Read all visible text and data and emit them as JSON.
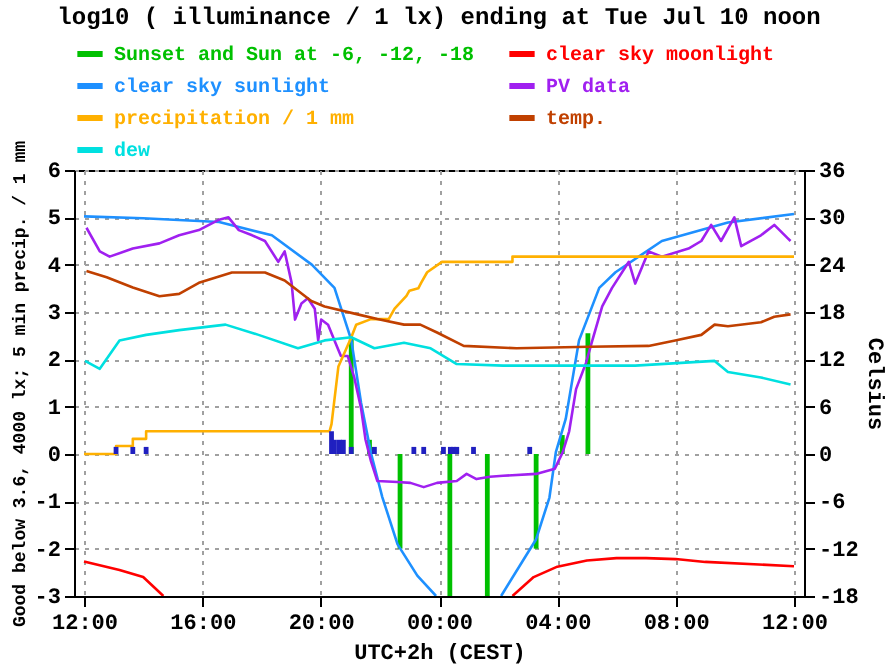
{
  "chart_data": {
    "type": "line",
    "title": "log10 ( illuminance / 1 lx) ending at Tue Jul 10 noon",
    "xlabel": "UTC+2h (CEST)",
    "ylabel": "Good below 3.6, 4000 lx; 5 min precip. / 1 mm",
    "y2label": "Celsius",
    "xlim": [
      "--07-09T12:00",
      "--07-10T12:00"
    ],
    "xticks": [
      {
        "value": "--07-09T12:00",
        "label": "12:00"
      },
      {
        "value": "--07-09T16:00",
        "label": "16:00"
      },
      {
        "value": "--07-09T20:00",
        "label": "20:00"
      },
      {
        "value": "--07-10T00:00",
        "label": "00:00"
      },
      {
        "value": "--07-10T04:00",
        "label": "04:00"
      },
      {
        "value": "--07-10T08:00",
        "label": "08:00"
      },
      {
        "value": "--07-10T12:00",
        "label": "12:00"
      }
    ],
    "ylim": [
      -3,
      6
    ],
    "yticks": [
      -3,
      -2,
      -1,
      0,
      1,
      2,
      3,
      4,
      5,
      6
    ],
    "y2lim": [
      -18,
      36
    ],
    "y2ticks": [
      -18,
      -12,
      -6,
      0,
      6,
      12,
      18,
      24,
      30,
      36
    ],
    "grid": true,
    "legend": "top",
    "series": [
      {
        "name": "Sunset and Sun at -6, -12, -18",
        "type": "bar",
        "color": "#00c000",
        "x": [
          "--07-09T21:02",
          "--07-09T21:39",
          "--07-09T22:41",
          "--07-10T00:22",
          "--07-10T01:38",
          "--07-10T03:17",
          "--07-10T04:10",
          "--07-10T05:02"
        ],
        "values": [
          2.45,
          0.3,
          -2,
          -3,
          -3,
          -2,
          0.4,
          2.55
        ]
      },
      {
        "name": "clear sky moonlight",
        "color": "#ff0000",
        "x": [
          "--07-09T12:00",
          "--07-09T13:12",
          "--07-09T14:00",
          "--07-09T14:41",
          "--07-09T20:00",
          "--07-10T02:29",
          "--07-10T03:12",
          "--07-10T04:00",
          "--07-10T05:00",
          "--07-10T06:00",
          "--07-10T07:00",
          "--07-10T08:00",
          "--07-10T09:00",
          "--07-10T12:00"
        ],
        "values": [
          -2.27,
          -2.45,
          -2.6,
          -3,
          null,
          -3,
          -2.6,
          -2.38,
          -2.25,
          -2.2,
          -2.2,
          -2.22,
          -2.28,
          -2.37
        ]
      },
      {
        "name": "clear sky sunlight",
        "color": "#1e90ff",
        "x": [
          "--07-09T12:00",
          "--07-09T14:00",
          "--07-09T16:34",
          "--07-09T18:21",
          "--07-09T19:42",
          "--07-09T20:28",
          "--07-09T21:02",
          "--07-09T21:22",
          "--07-09T21:42",
          "--07-09T22:05",
          "--07-09T22:36",
          "--07-09T23:16",
          "--07-09T23:54",
          "--07-10T01:00",
          "--07-10T02:06",
          "--07-10T03:17",
          "--07-10T03:44",
          "--07-10T03:57",
          "--07-10T04:17",
          "--07-10T04:44",
          "--07-10T05:25",
          "--07-10T05:58",
          "--07-10T07:32",
          "--07-10T09:46",
          "--07-10T12:00"
        ],
        "values": [
          5.02,
          4.98,
          4.9,
          4.62,
          4.0,
          3.51,
          2.41,
          1.08,
          0.02,
          -0.91,
          -1.91,
          -2.57,
          -3,
          null,
          -3,
          -1.8,
          -0.92,
          0.04,
          0.74,
          2.4,
          3.51,
          3.84,
          4.5,
          4.89,
          5.07
        ]
      },
      {
        "name": "PV data",
        "color": "#a020f0",
        "x": [
          "--07-09T12:05",
          "--07-09T12:32",
          "--07-09T12:52",
          "--07-09T13:39",
          "--07-09T14:33",
          "--07-09T15:13",
          "--07-09T15:53",
          "--07-09T16:34",
          "--07-09T16:53",
          "--07-09T17:14",
          "--07-09T17:41",
          "--07-09T18:07",
          "--07-09T18:34",
          "--07-09T18:47",
          "--07-09T19:01",
          "--07-09T19:08",
          "--07-09T19:21",
          "--07-09T19:34",
          "--07-09T19:48",
          "--07-09T19:55",
          "--07-09T20:01",
          "--07-09T20:15",
          "--07-09T20:28",
          "--07-09T20:41",
          "--07-09T20:55",
          "--07-09T21:08",
          "--07-09T21:22",
          "--07-09T21:31",
          "--07-09T21:42",
          "--07-09T21:55",
          "--07-09T22:36",
          "--07-09T23:02",
          "--07-09T23:29",
          "--07-09T23:56",
          "--07-10T00:36",
          "--07-10T00:56",
          "--07-10T01:16",
          "--07-10T01:43",
          "--07-10T02:10",
          "--07-10T03:17",
          "--07-10T03:55",
          "--07-10T04:11",
          "--07-10T04:24",
          "--07-10T04:38",
          "--07-10T04:58",
          "--07-10T05:11",
          "--07-10T05:31",
          "--07-10T05:51",
          "--07-10T06:25",
          "--07-10T06:38",
          "--07-10T07:05",
          "--07-10T07:32",
          "--07-10T08:26",
          "--07-10T08:52",
          "--07-10T09:12",
          "--07-10T09:32",
          "--07-10T09:59",
          "--07-10T10:13",
          "--07-10T10:53",
          "--07-10T11:20",
          "--07-10T11:47",
          "--07-10T11:53"
        ],
        "values": [
          4.78,
          4.28,
          4.17,
          4.34,
          4.45,
          4.62,
          4.73,
          4.95,
          5.0,
          4.73,
          4.62,
          4.5,
          4.06,
          4.28,
          3.62,
          2.84,
          3.18,
          3.29,
          3.07,
          2.4,
          2.84,
          2.73,
          2.4,
          2.07,
          2.07,
          1.62,
          0.96,
          0.3,
          -0.15,
          -0.57,
          -0.59,
          -0.61,
          -0.7,
          -0.61,
          -0.57,
          -0.42,
          -0.53,
          -0.48,
          -0.46,
          -0.42,
          -0.31,
          0.04,
          0.48,
          1.37,
          1.92,
          2.4,
          3.12,
          3.51,
          4.06,
          3.6,
          4.28,
          4.17,
          4.34,
          4.5,
          4.84,
          4.5,
          5.0,
          4.39,
          4.62,
          4.84,
          4.56,
          4.5
        ]
      },
      {
        "name": "precipitation / 1 mm",
        "color": "#ffb000",
        "x": [
          "--07-09T12:00",
          "--07-09T13:05",
          "--07-09T13:05",
          "--07-09T13:39",
          "--07-09T13:39",
          "--07-09T14:06",
          "--07-09T14:06",
          "--07-09T20:18",
          "--07-09T20:22",
          "--07-09T20:36",
          "--07-09T21:02",
          "--07-09T21:12",
          "--07-09T21:42",
          "--07-09T22:18",
          "--07-09T22:30",
          "--07-09T22:54",
          "--07-09T23:00",
          "--07-09T23:18",
          "--07-09T23:24",
          "--07-09T23:36",
          "--07-10T00:06",
          "--07-10T02:29",
          "--07-10T02:29",
          "--07-10T12:00"
        ],
        "values": [
          0,
          0,
          0.17,
          0.17,
          0.32,
          0.32,
          0.48,
          0.48,
          0.63,
          1.85,
          2.46,
          2.73,
          2.85,
          2.85,
          3.07,
          3.34,
          3.45,
          3.5,
          3.62,
          3.84,
          4.06,
          4.06,
          4.17,
          4.17
        ]
      },
      {
        "type": "bar",
        "color": "#2020c0",
        "x": [
          "--07-09T13:05",
          "--07-09T13:39",
          "--07-09T14:06",
          "--07-09T20:22",
          "--07-09T20:28",
          "--07-09T20:38",
          "--07-09T20:46",
          "--07-09T21:02",
          "--07-09T21:49",
          "--07-09T23:09",
          "--07-09T23:29",
          "--07-10T00:09",
          "--07-10T00:23",
          "--07-10T00:29",
          "--07-10T00:36",
          "--07-10T01:10",
          "--07-10T03:04"
        ],
        "values": [
          0.15,
          0.15,
          0.15,
          0.48,
          0.3,
          0.3,
          0.3,
          0.15,
          0.15,
          0.15,
          0.15,
          0.15,
          0.15,
          0.15,
          0.15,
          0.15,
          0.15
        ]
      },
      {
        "name": "temp.",
        "axis": "y2",
        "color": "#c04000",
        "x": [
          "--07-09T12:05",
          "--07-09T12:46",
          "--07-09T13:39",
          "--07-09T14:33",
          "--07-09T15:13",
          "--07-09T15:53",
          "--07-09T17:00",
          "--07-09T18:07",
          "--07-09T18:47",
          "--07-09T19:41",
          "--07-09T20:08",
          "--07-09T21:15",
          "--07-09T21:55",
          "--07-09T22:49",
          "--07-09T23:22",
          "--07-09T23:56",
          "--07-10T00:50",
          "--07-10T02:37",
          "--07-10T05:04",
          "--07-10T07:05",
          "--07-10T07:59",
          "--07-10T08:52",
          "--07-10T09:19",
          "--07-10T09:46",
          "--07-10T10:53",
          "--07-10T11:20",
          "--07-10T11:53"
        ],
        "values": [
          23.2,
          22.4,
          21.1,
          20.0,
          20.3,
          21.7,
          23.0,
          23.0,
          22.0,
          19.4,
          18.7,
          17.7,
          17.1,
          16.4,
          16.4,
          15.4,
          13.7,
          13.4,
          13.6,
          13.7,
          14.4,
          15.1,
          16.4,
          16.2,
          16.7,
          17.4,
          17.7
        ]
      },
      {
        "name": "dew",
        "axis": "y2",
        "color": "#00e0e0",
        "x": [
          "--07-09T12:02",
          "--07-09T12:32",
          "--07-09T13:12",
          "--07-09T14:06",
          "--07-09T15:13",
          "--07-09T16:47",
          "--07-09T17:54",
          "--07-09T19:14",
          "--07-09T20:08",
          "--07-09T21:02",
          "--07-09T21:49",
          "--07-09T22:49",
          "--07-09T23:43",
          "--07-10T00:36",
          "--07-10T02:10",
          "--07-10T06:38",
          "--07-10T09:19",
          "--07-10T09:46",
          "--07-10T10:53",
          "--07-10T11:53"
        ],
        "values": [
          11.8,
          10.8,
          14.4,
          15.1,
          15.7,
          16.4,
          15.1,
          13.4,
          14.4,
          14.8,
          13.4,
          14.1,
          13.4,
          11.4,
          11.2,
          11.2,
          11.8,
          10.4,
          9.7,
          8.8
        ]
      }
    ]
  }
}
